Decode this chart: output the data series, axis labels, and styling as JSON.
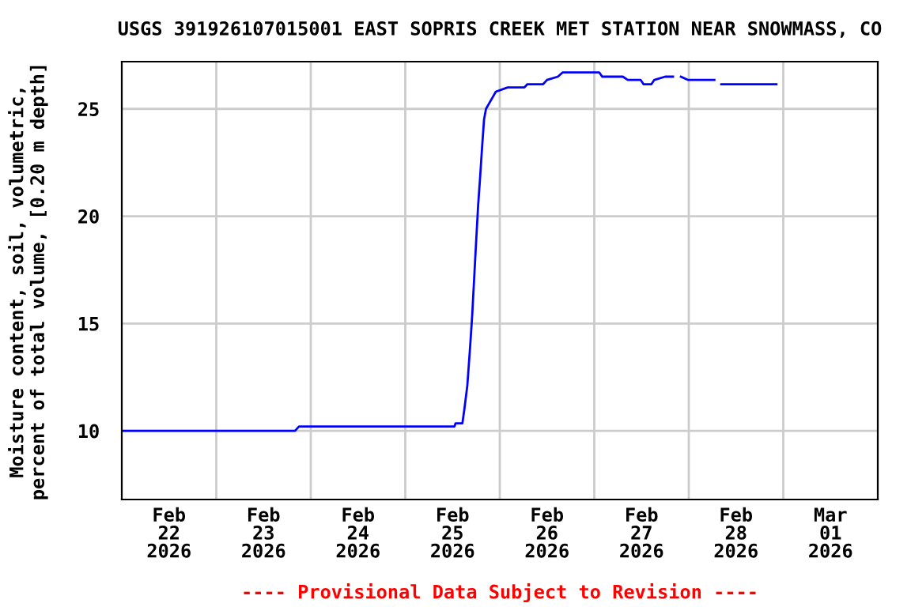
{
  "chart_data": {
    "type": "line",
    "title": "USGS 391926107015001 EAST SOPRIS CREEK MET STATION NEAR SNOWMASS, CO",
    "ylabel": "Moisture content, soil, volumetric,\npercent of total volume, [0.20 m depth]",
    "annotations": [
      "---- Provisional Data Subject to Revision ----"
    ],
    "series": [
      {
        "color": "#0000ff",
        "x": [
          "2026-02-22T00:00",
          "2026-02-23T20:00",
          "2026-02-23T21:00",
          "2026-02-25T12:30",
          "2026-02-25T12:45",
          "2026-02-25T14:30",
          "2026-02-25T15:00",
          "2026-02-25T15:45",
          "2026-02-25T16:30",
          "2026-02-25T17:00",
          "2026-02-25T17:45",
          "2026-02-25T18:30",
          "2026-02-25T19:00",
          "2026-02-25T19:30",
          "2026-02-25T20:00",
          "2026-02-25T20:30",
          "2026-02-25T21:45",
          "2026-02-25T23:00",
          "2026-02-26T02:00",
          "2026-02-26T06:15",
          "2026-02-26T07:00",
          "2026-02-26T11:00",
          "2026-02-26T12:00",
          "2026-02-26T14:45",
          "2026-02-26T16:00",
          "2026-02-27T01:15",
          "2026-02-27T02:00",
          "2026-02-27T07:15",
          "2026-02-27T08:30",
          "2026-02-27T11:45",
          "2026-02-27T12:30",
          "2026-02-27T14:30",
          "2026-02-27T15:15",
          "2026-02-27T18:00",
          "2026-02-27T20:00",
          "2026-02-27T21:00",
          "2026-02-27T22:00",
          "2026-02-27T23:45",
          "2026-02-28T06:30",
          "2026-02-28T07:30",
          "2026-02-28T08:15",
          "2026-02-28T22:15"
        ],
        "values": [
          10.0,
          10.0,
          10.2,
          10.2,
          10.35,
          10.35,
          11.0,
          12.1,
          14.0,
          15.4,
          18.0,
          20.5,
          21.8,
          23.2,
          24.5,
          25.0,
          25.4,
          25.8,
          26.0,
          26.0,
          26.15,
          26.15,
          26.35,
          26.5,
          26.7,
          26.7,
          26.5,
          26.5,
          26.35,
          26.35,
          26.15,
          26.15,
          26.35,
          26.5,
          26.5,
          null,
          26.5,
          26.35,
          26.35,
          null,
          26.15,
          26.15
        ]
      }
    ],
    "xlim": [
      "2026-02-22T00:00",
      "2026-03-02T00:00"
    ],
    "xticks": [
      {
        "value": "2026-02-22T12:00",
        "label": "Feb\n22\n2026"
      },
      {
        "value": "2026-02-23T12:00",
        "label": "Feb\n23\n2026"
      },
      {
        "value": "2026-02-24T12:00",
        "label": "Feb\n24\n2026"
      },
      {
        "value": "2026-02-25T12:00",
        "label": "Feb\n25\n2026"
      },
      {
        "value": "2026-02-26T12:00",
        "label": "Feb\n26\n2026"
      },
      {
        "value": "2026-02-27T12:00",
        "label": "Feb\n27\n2026"
      },
      {
        "value": "2026-02-28T12:00",
        "label": "Feb\n28\n2026"
      },
      {
        "value": "2026-03-01T12:00",
        "label": "Mar\n01\n2026"
      },
      {
        "value": "2026-02-23T00:00",
        "label": null
      },
      {
        "value": "2026-02-24T00:00",
        "label": null
      },
      {
        "value": "2026-02-25T00:00",
        "label": null
      },
      {
        "value": "2026-02-26T00:00",
        "label": null
      },
      {
        "value": "2026-02-27T00:00",
        "label": null
      },
      {
        "value": "2026-02-28T00:00",
        "label": null
      },
      {
        "value": "2026-03-01T00:00",
        "label": null
      }
    ],
    "ylim": [
      6.8,
      27.2
    ],
    "yticks": [
      10,
      15,
      20,
      25
    ],
    "grid": true,
    "legend": false,
    "line_style": "solid",
    "marker": "none"
  }
}
